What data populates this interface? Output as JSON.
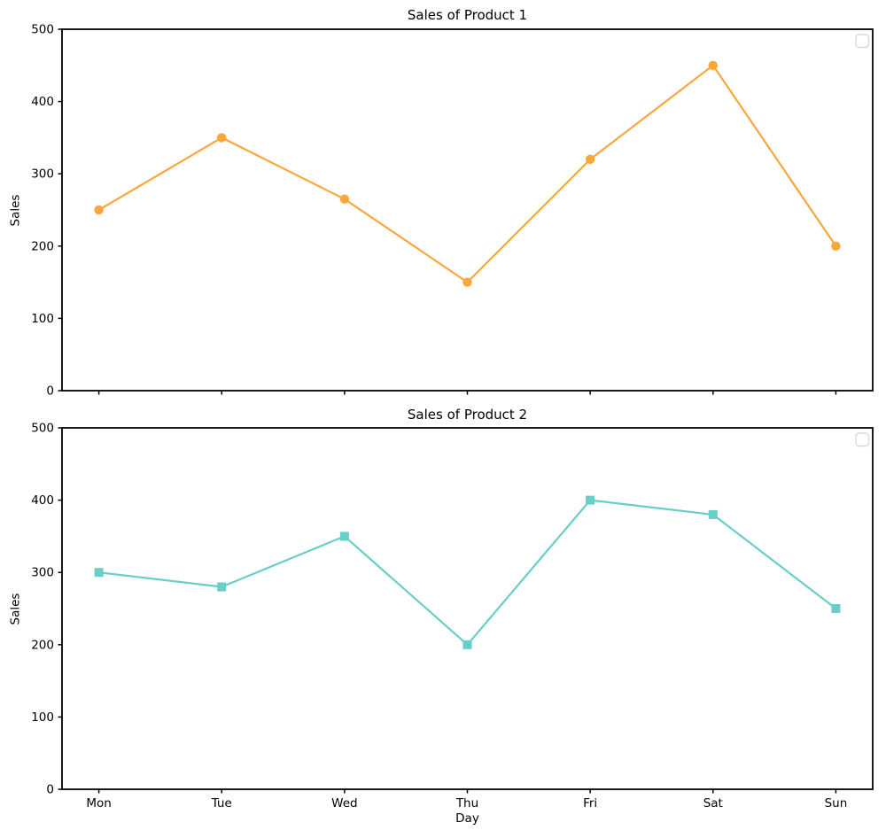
{
  "figure": {
    "background": "#ffffff",
    "text_color": "#000000",
    "spine_color": "#000000",
    "legend_border_color": "#d9d9d9"
  },
  "chart_data": [
    {
      "type": "line",
      "title": "Sales of Product 1",
      "xlabel": "",
      "ylabel": "Sales",
      "categories": [
        "Mon",
        "Tue",
        "Wed",
        "Thu",
        "Fri",
        "Sat",
        "Sun"
      ],
      "series": [
        {
          "values": [
            250,
            350,
            265,
            150,
            320,
            450,
            200
          ],
          "color": "#F9A63C",
          "marker": "circle"
        }
      ],
      "ylim": [
        0,
        500
      ],
      "yticks": [
        0,
        100,
        200,
        300,
        400,
        500
      ],
      "grid": false,
      "legend": {
        "visible": true,
        "empty": true,
        "position": "upper right"
      },
      "show_x_tick_labels": false
    },
    {
      "type": "line",
      "title": "Sales of Product 2",
      "xlabel": "Day",
      "ylabel": "Sales",
      "categories": [
        "Mon",
        "Tue",
        "Wed",
        "Thu",
        "Fri",
        "Sat",
        "Sun"
      ],
      "series": [
        {
          "values": [
            300,
            280,
            350,
            200,
            400,
            380,
            250
          ],
          "color": "#68CEC8",
          "marker": "square"
        }
      ],
      "ylim": [
        0,
        500
      ],
      "yticks": [
        0,
        100,
        200,
        300,
        400,
        500
      ],
      "grid": false,
      "legend": {
        "visible": true,
        "empty": true,
        "position": "upper right"
      },
      "show_x_tick_labels": true
    }
  ]
}
